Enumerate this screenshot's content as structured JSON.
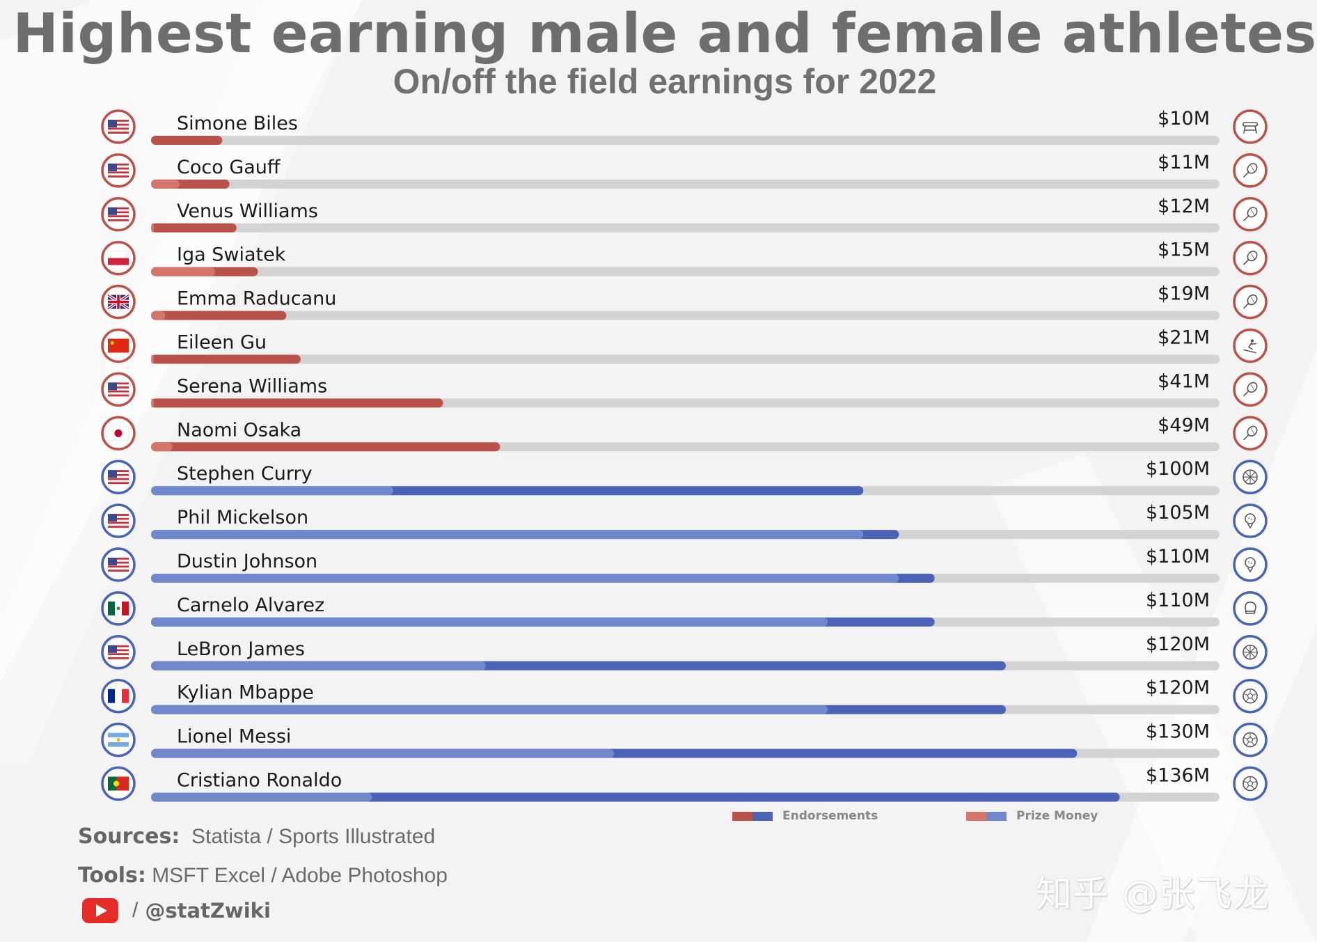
{
  "header": {
    "title": "Highest earning male and female athletes",
    "subtitle": "On/off the field earnings for 2022"
  },
  "colors": {
    "female_endorsements": "#b9524a",
    "female_prize": "#d4766a",
    "male_endorsements": "#4b63b6",
    "male_prize": "#7189cc",
    "track": "#d3d3d3"
  },
  "chart_data": {
    "type": "bar",
    "orientation": "horizontal",
    "stacked": true,
    "title": "Highest earning male and female athletes",
    "subtitle": "On/off the field earnings for 2022",
    "max_value": 150,
    "legend_position": "bottom-right",
    "series": [
      {
        "name": "Endorsements"
      },
      {
        "name": "Prize Money"
      }
    ],
    "athletes": [
      {
        "name": "Simone Biles",
        "total_label": "$10M",
        "total": 10,
        "prize": 0,
        "endorsements": 10,
        "gender": "female",
        "flag": "us-flag-icon",
        "sport": "gymnastics-vault-icon"
      },
      {
        "name": "Coco Gauff",
        "total_label": "$11M",
        "total": 11,
        "prize": 4,
        "endorsements": 7,
        "gender": "female",
        "flag": "us-flag-icon",
        "sport": "tennis-racket-icon"
      },
      {
        "name": "Venus Williams",
        "total_label": "$12M",
        "total": 12,
        "prize": 0.3,
        "endorsements": 11.7,
        "gender": "female",
        "flag": "us-flag-icon",
        "sport": "tennis-racket-icon"
      },
      {
        "name": "Iga Swiatek",
        "total_label": "$15M",
        "total": 15,
        "prize": 9,
        "endorsements": 6,
        "gender": "female",
        "flag": "poland-flag-icon",
        "sport": "tennis-racket-icon"
      },
      {
        "name": "Emma Raducanu",
        "total_label": "$19M",
        "total": 19,
        "prize": 2,
        "endorsements": 17,
        "gender": "female",
        "flag": "uk-flag-icon",
        "sport": "tennis-racket-icon"
      },
      {
        "name": "Eileen Gu",
        "total_label": "$21M",
        "total": 21,
        "prize": 0.3,
        "endorsements": 20.7,
        "gender": "female",
        "flag": "china-flag-icon",
        "sport": "freestyle-skiing-icon"
      },
      {
        "name": "Serena Williams",
        "total_label": "$41M",
        "total": 41,
        "prize": 0.3,
        "endorsements": 40.7,
        "gender": "female",
        "flag": "us-flag-icon",
        "sport": "tennis-racket-icon"
      },
      {
        "name": "Naomi Osaka",
        "total_label": "$49M",
        "total": 49,
        "prize": 3,
        "endorsements": 46,
        "gender": "female",
        "flag": "japan-flag-icon",
        "sport": "tennis-racket-icon"
      },
      {
        "name": "Stephen Curry",
        "total_label": "$100M",
        "total": 100,
        "prize": 34,
        "endorsements": 66,
        "gender": "male",
        "flag": "us-flag-icon",
        "sport": "basketball-icon"
      },
      {
        "name": "Phil Mickelson",
        "total_label": "$105M",
        "total": 105,
        "prize": 100,
        "endorsements": 5,
        "gender": "male",
        "flag": "us-flag-icon",
        "sport": "golf-ball-icon"
      },
      {
        "name": "Dustin Johnson",
        "total_label": "$110M",
        "total": 110,
        "prize": 105,
        "endorsements": 5,
        "gender": "male",
        "flag": "us-flag-icon",
        "sport": "golf-ball-icon"
      },
      {
        "name": "Carnelo Alvarez",
        "total_label": "$110M",
        "total": 110,
        "prize": 95,
        "endorsements": 15,
        "gender": "male",
        "flag": "mexico-flag-icon",
        "sport": "boxing-glove-icon"
      },
      {
        "name": "LeBron James",
        "total_label": "$120M",
        "total": 120,
        "prize": 47,
        "endorsements": 73,
        "gender": "male",
        "flag": "us-flag-icon",
        "sport": "basketball-icon"
      },
      {
        "name": "Kylian Mbappe",
        "total_label": "$120M",
        "total": 120,
        "prize": 95,
        "endorsements": 25,
        "gender": "male",
        "flag": "france-flag-icon",
        "sport": "soccer-ball-icon"
      },
      {
        "name": "Lionel Messi",
        "total_label": "$130M",
        "total": 130,
        "prize": 65,
        "endorsements": 65,
        "gender": "male",
        "flag": "argentina-flag-icon",
        "sport": "soccer-ball-icon"
      },
      {
        "name": "Cristiano Ronaldo",
        "total_label": "$136M",
        "total": 136,
        "prize": 31,
        "endorsements": 105,
        "gender": "male",
        "flag": "portugal-flag-icon",
        "sport": "soccer-ball-icon"
      }
    ]
  },
  "legend": {
    "endorsements_label": "Endorsements",
    "prize_label": "Prize Money"
  },
  "footer": {
    "sources_key": "Sources:",
    "sources_value": "Statista / Sports Illustrated",
    "tools_key": "Tools:",
    "tools_value": "MSFT Excel / Adobe Photoshop",
    "separator": "/",
    "handle": "@statZwiki",
    "youtube_icon": "youtube-icon"
  },
  "watermark": "知乎 @张飞龙"
}
